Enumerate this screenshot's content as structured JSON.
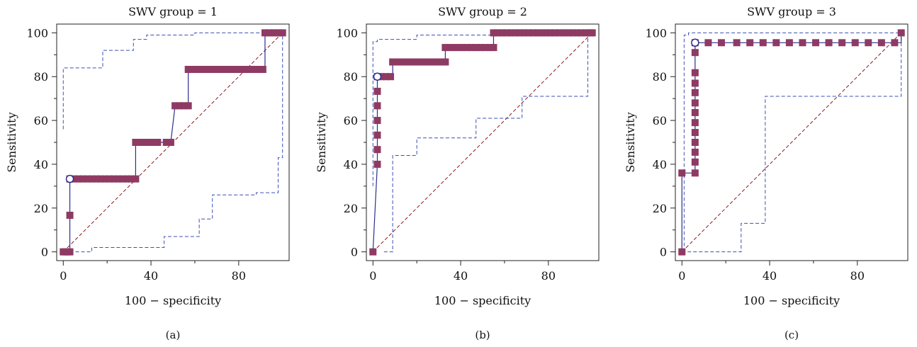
{
  "colors": {
    "roc_line": "#2b2f8f",
    "marker": "#8e3a63",
    "ci_line": "#3d4fb5",
    "diagonal": "#8b1a1a",
    "optimal_point_fill": "#ffffff"
  },
  "chart_data": [
    {
      "type": "line",
      "title": "SWV group = 1",
      "panel_label": "(a)",
      "xlabel": "100 − specificity",
      "ylabel": "Sensitivity",
      "xlim": [
        0,
        100
      ],
      "ylim": [
        0,
        100
      ],
      "xticks": [
        "0",
        "40",
        "80"
      ],
      "yticks": [
        "0",
        "20",
        "40",
        "60",
        "80",
        "100"
      ],
      "grid": false,
      "series": [
        {
          "role": "roc",
          "points": [
            [
              0,
              0
            ],
            [
              3,
              0
            ],
            [
              3,
              16.7
            ],
            [
              3,
              33.3
            ],
            [
              33,
              33.3
            ],
            [
              33,
              50
            ],
            [
              49,
              50
            ],
            [
              51,
              66.7
            ],
            [
              57,
              66.7
            ],
            [
              57,
              83.3
            ],
            [
              92,
              83.3
            ],
            [
              92,
              100
            ],
            [
              100,
              100
            ]
          ]
        },
        {
          "role": "markers",
          "points": [
            [
              0,
              0
            ],
            [
              1,
              0
            ],
            [
              2,
              0
            ],
            [
              3,
              0
            ],
            [
              3,
              16.7
            ],
            [
              3,
              33.3
            ],
            [
              5,
              33.3
            ],
            [
              7,
              33.3
            ],
            [
              9,
              33.3
            ],
            [
              11,
              33.3
            ],
            [
              13,
              33.3
            ],
            [
              15,
              33.3
            ],
            [
              17,
              33.3
            ],
            [
              19,
              33.3
            ],
            [
              21,
              33.3
            ],
            [
              23,
              33.3
            ],
            [
              25,
              33.3
            ],
            [
              27,
              33.3
            ],
            [
              29,
              33.3
            ],
            [
              31,
              33.3
            ],
            [
              33,
              33.3
            ],
            [
              33,
              50
            ],
            [
              35,
              50
            ],
            [
              37,
              50
            ],
            [
              39,
              50
            ],
            [
              41,
              50
            ],
            [
              43,
              50
            ],
            [
              47,
              50
            ],
            [
              49,
              50
            ],
            [
              51,
              66.7
            ],
            [
              53,
              66.7
            ],
            [
              55,
              66.7
            ],
            [
              57,
              66.7
            ],
            [
              57,
              83.3
            ],
            [
              59,
              83.3
            ],
            [
              61,
              83.3
            ],
            [
              63,
              83.3
            ],
            [
              65,
              83.3
            ],
            [
              67,
              83.3
            ],
            [
              69,
              83.3
            ],
            [
              71,
              83.3
            ],
            [
              73,
              83.3
            ],
            [
              75,
              83.3
            ],
            [
              77,
              83.3
            ],
            [
              79,
              83.3
            ],
            [
              81,
              83.3
            ],
            [
              83,
              83.3
            ],
            [
              85,
              83.3
            ],
            [
              87,
              83.3
            ],
            [
              89,
              83.3
            ],
            [
              91,
              83.3
            ],
            [
              92,
              100
            ],
            [
              94,
              100
            ],
            [
              96,
              100
            ],
            [
              98,
              100
            ],
            [
              100,
              100
            ]
          ]
        },
        {
          "role": "ci_upper",
          "points": [
            [
              0,
              56
            ],
            [
              0,
              84
            ],
            [
              18,
              84
            ],
            [
              18,
              92
            ],
            [
              32,
              92
            ],
            [
              32,
              97
            ],
            [
              38,
              97
            ],
            [
              38,
              99
            ],
            [
              60,
              99
            ],
            [
              60,
              100
            ],
            [
              97,
              100
            ],
            [
              97,
              99
            ],
            [
              100,
              99
            ],
            [
              100,
              98
            ]
          ]
        },
        {
          "role": "ci_lower",
          "points": [
            [
              3,
              0
            ],
            [
              13,
              0
            ],
            [
              13,
              2
            ],
            [
              46,
              2
            ],
            [
              46,
              7
            ],
            [
              62,
              7
            ],
            [
              62,
              15
            ],
            [
              68,
              15
            ],
            [
              68,
              26
            ],
            [
              88,
              26
            ],
            [
              88,
              27
            ],
            [
              98,
              27
            ],
            [
              98,
              43
            ],
            [
              100,
              43
            ],
            [
              100,
              98
            ]
          ]
        },
        {
          "role": "diagonal",
          "points": [
            [
              0,
              0
            ],
            [
              100,
              100
            ]
          ]
        }
      ],
      "optimal_point": [
        3,
        33.3
      ]
    },
    {
      "type": "line",
      "title": "SWV group = 2",
      "panel_label": "(b)",
      "xlabel": "100 − specificity",
      "ylabel": "Sensitivity",
      "xlim": [
        0,
        100
      ],
      "ylim": [
        0,
        100
      ],
      "xticks": [
        "0",
        "40",
        "80"
      ],
      "yticks": [
        "0",
        "20",
        "40",
        "60",
        "80",
        "100"
      ],
      "grid": false,
      "series": [
        {
          "role": "roc",
          "points": [
            [
              0,
              0
            ],
            [
              2,
              40
            ],
            [
              2,
              46.7
            ],
            [
              2,
              53.3
            ],
            [
              2,
              60
            ],
            [
              2,
              66.7
            ],
            [
              2,
              73.3
            ],
            [
              2,
              80
            ],
            [
              9,
              80
            ],
            [
              9,
              86.7
            ],
            [
              33,
              86.7
            ],
            [
              33,
              93.3
            ],
            [
              55,
              93.3
            ],
            [
              55,
              100
            ],
            [
              100,
              100
            ]
          ]
        },
        {
          "role": "markers",
          "points": [
            [
              0,
              0
            ],
            [
              2,
              40
            ],
            [
              2,
              46.7
            ],
            [
              2,
              53.3
            ],
            [
              2,
              60
            ],
            [
              2,
              66.7
            ],
            [
              2,
              73.3
            ],
            [
              2,
              80
            ],
            [
              4,
              80
            ],
            [
              6,
              80
            ],
            [
              8,
              80
            ],
            [
              9,
              86.7
            ],
            [
              11,
              86.7
            ],
            [
              13,
              86.7
            ],
            [
              15,
              86.7
            ],
            [
              17,
              86.7
            ],
            [
              19,
              86.7
            ],
            [
              21,
              86.7
            ],
            [
              23,
              86.7
            ],
            [
              25,
              86.7
            ],
            [
              27,
              86.7
            ],
            [
              29,
              86.7
            ],
            [
              31,
              86.7
            ],
            [
              33,
              86.7
            ],
            [
              33,
              93.3
            ],
            [
              35,
              93.3
            ],
            [
              37,
              93.3
            ],
            [
              39,
              93.3
            ],
            [
              41,
              93.3
            ],
            [
              43,
              93.3
            ],
            [
              45,
              93.3
            ],
            [
              47,
              93.3
            ],
            [
              49,
              93.3
            ],
            [
              51,
              93.3
            ],
            [
              53,
              93.3
            ],
            [
              55,
              93.3
            ],
            [
              55,
              100
            ],
            [
              57,
              100
            ],
            [
              59,
              100
            ],
            [
              61,
              100
            ],
            [
              63,
              100
            ],
            [
              65,
              100
            ],
            [
              67,
              100
            ],
            [
              69,
              100
            ],
            [
              71,
              100
            ],
            [
              73,
              100
            ],
            [
              75,
              100
            ],
            [
              77,
              100
            ],
            [
              79,
              100
            ],
            [
              81,
              100
            ],
            [
              83,
              100
            ],
            [
              85,
              100
            ],
            [
              87,
              100
            ],
            [
              89,
              100
            ],
            [
              91,
              100
            ],
            [
              93,
              100
            ],
            [
              95,
              100
            ],
            [
              97,
              100
            ],
            [
              99,
              100
            ],
            [
              100,
              100
            ]
          ]
        },
        {
          "role": "ci_upper",
          "points": [
            [
              0,
              30
            ],
            [
              0,
              96
            ],
            [
              2,
              96
            ],
            [
              2,
              97
            ],
            [
              20,
              97
            ],
            [
              20,
              99
            ],
            [
              55,
              99
            ],
            [
              55,
              100
            ],
            [
              100,
              100
            ]
          ]
        },
        {
          "role": "ci_lower",
          "points": [
            [
              5,
              0
            ],
            [
              9,
              0
            ],
            [
              9,
              44
            ],
            [
              20,
              44
            ],
            [
              20,
              52
            ],
            [
              47,
              52
            ],
            [
              47,
              61
            ],
            [
              68,
              61
            ],
            [
              68,
              71
            ],
            [
              98,
              71
            ],
            [
              98,
              100
            ],
            [
              100,
              100
            ]
          ]
        },
        {
          "role": "diagonal",
          "points": [
            [
              0,
              0
            ],
            [
              100,
              100
            ]
          ]
        }
      ],
      "optimal_point": [
        2,
        80
      ]
    },
    {
      "type": "line",
      "title": "SWV group = 3",
      "panel_label": "(c)",
      "xlabel": "100 − specificity",
      "ylabel": "Sensitivity",
      "xlim": [
        0,
        100
      ],
      "ylim": [
        0,
        100
      ],
      "xticks": [
        "0",
        "40",
        "80"
      ],
      "yticks": [
        "0",
        "20",
        "40",
        "60",
        "80",
        "100"
      ],
      "grid": false,
      "series": [
        {
          "role": "roc",
          "points": [
            [
              0,
              0
            ],
            [
              0,
              36
            ],
            [
              6,
              36
            ],
            [
              6,
              95.5
            ],
            [
              100,
              95.5
            ],
            [
              100,
              100
            ]
          ]
        },
        {
          "role": "markers",
          "points": [
            [
              0,
              0
            ],
            [
              0,
              36
            ],
            [
              6,
              36
            ],
            [
              6,
              41
            ],
            [
              6,
              45.5
            ],
            [
              6,
              50
            ],
            [
              6,
              54.5
            ],
            [
              6,
              59
            ],
            [
              6,
              63.6
            ],
            [
              6,
              68
            ],
            [
              6,
              72.7
            ],
            [
              6,
              77
            ],
            [
              6,
              81.8
            ],
            [
              6,
              91
            ],
            [
              6,
              95.5
            ],
            [
              12,
              95.5
            ],
            [
              18,
              95.5
            ],
            [
              25,
              95.5
            ],
            [
              31,
              95.5
            ],
            [
              37,
              95.5
            ],
            [
              43,
              95.5
            ],
            [
              49,
              95.5
            ],
            [
              55,
              95.5
            ],
            [
              61,
              95.5
            ],
            [
              67,
              95.5
            ],
            [
              73,
              95.5
            ],
            [
              79,
              95.5
            ],
            [
              85,
              95.5
            ],
            [
              91,
              95.5
            ],
            [
              97,
              95.5
            ],
            [
              100,
              100
            ]
          ]
        },
        {
          "role": "ci_upper",
          "points": [
            [
              1,
              0
            ],
            [
              1,
              99
            ],
            [
              3,
              99
            ],
            [
              3,
              100
            ],
            [
              100,
              100
            ]
          ]
        },
        {
          "role": "ci_lower",
          "points": [
            [
              0,
              0
            ],
            [
              27,
              0
            ],
            [
              27,
              13
            ],
            [
              38,
              13
            ],
            [
              38,
              71
            ],
            [
              100,
              71
            ],
            [
              100,
              100
            ]
          ]
        },
        {
          "role": "diagonal",
          "points": [
            [
              0,
              0
            ],
            [
              100,
              100
            ]
          ]
        }
      ],
      "optimal_point": [
        6,
        95.5
      ]
    }
  ]
}
